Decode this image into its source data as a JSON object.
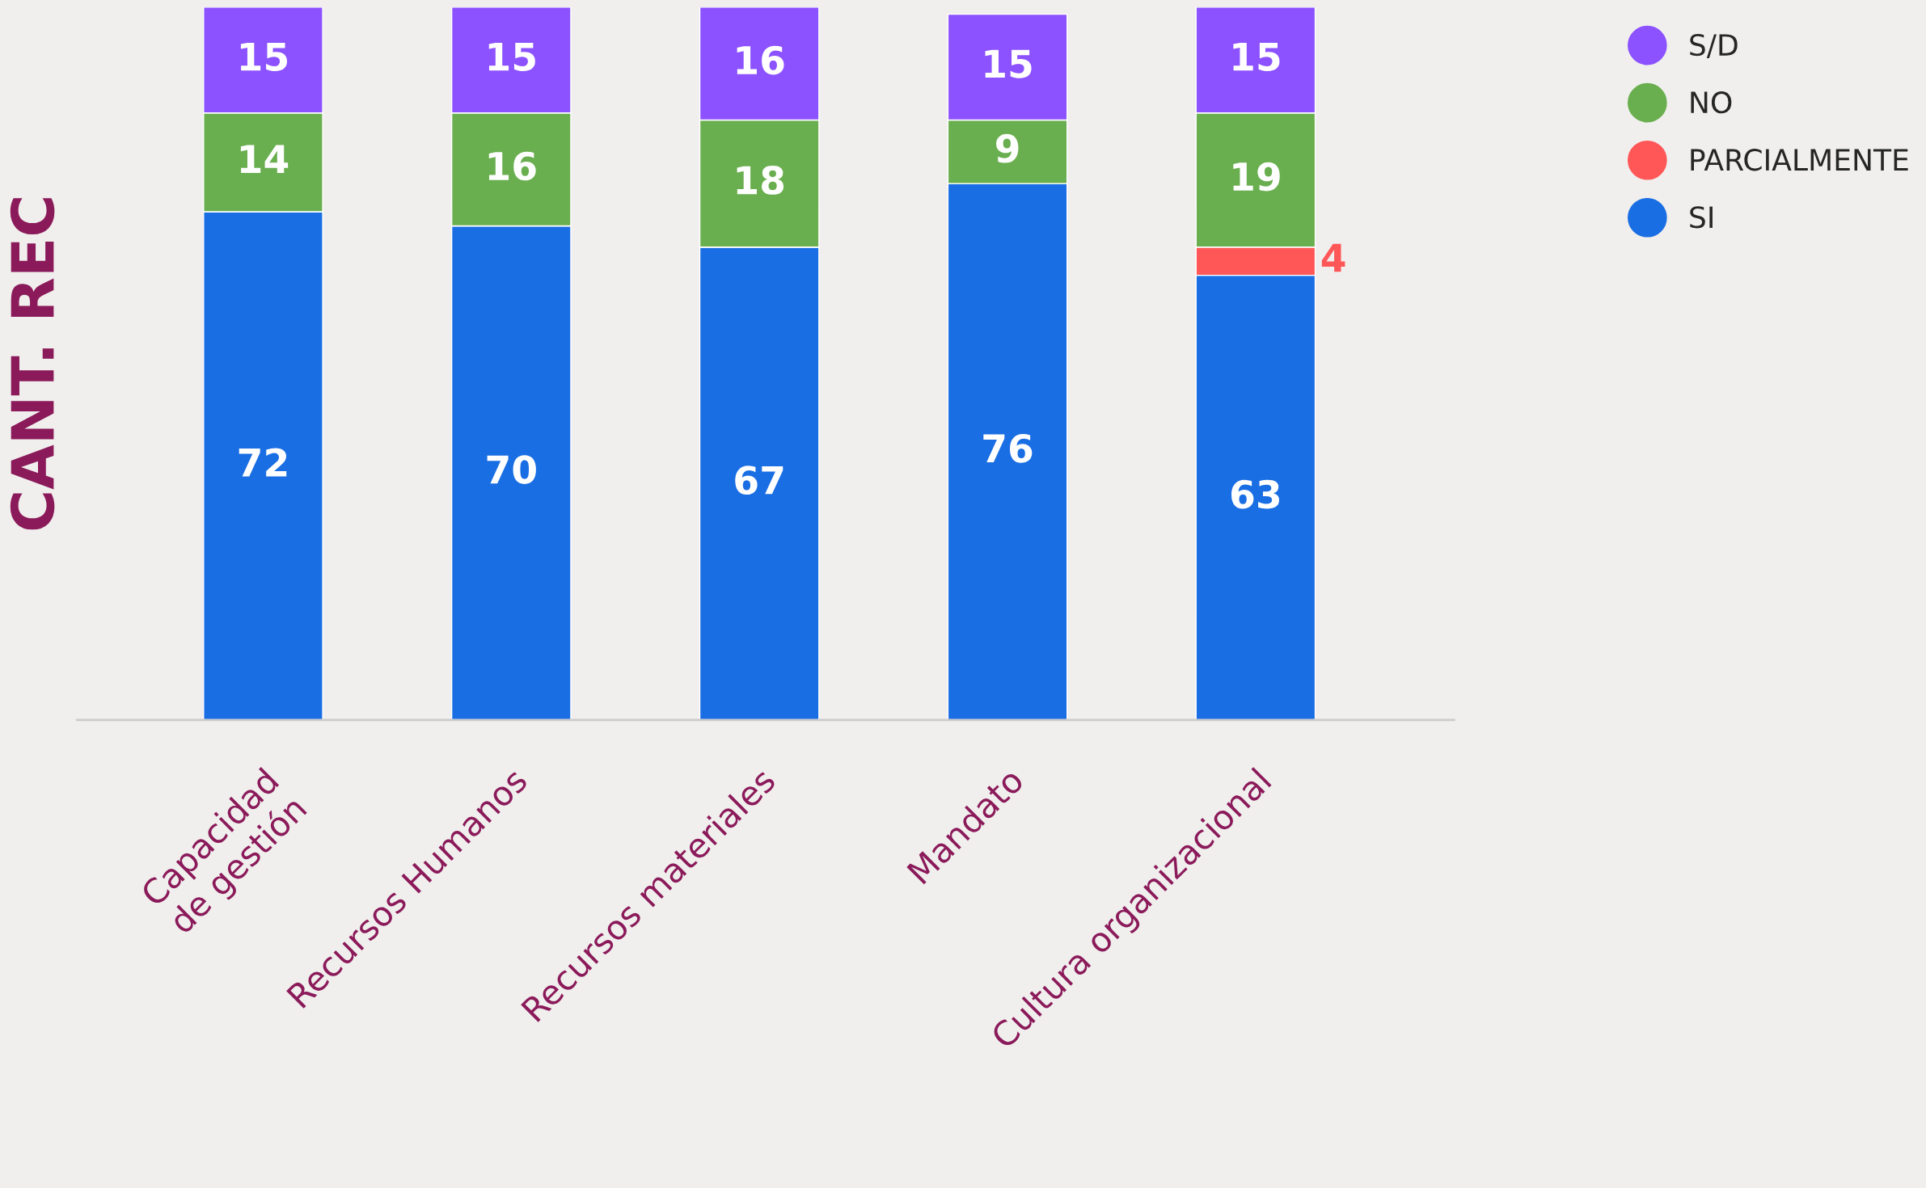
{
  "chart_data": {
    "type": "bar",
    "stacked": true,
    "ylabel": "CANT. REC",
    "categories": [
      "Capacidad\nde gestión",
      "Recursos Humanos",
      "Recursos materiales",
      "Mandato",
      "Cultura organizacional"
    ],
    "series": [
      {
        "name": "SI",
        "color": "#1a6ee3",
        "values": [
          72,
          70,
          67,
          76,
          63
        ]
      },
      {
        "name": "PARCIALMENTE",
        "color": "#ff5757",
        "values": [
          null,
          null,
          null,
          null,
          4
        ]
      },
      {
        "name": "NO",
        "color": "#6aaf4f",
        "values": [
          14,
          16,
          18,
          9,
          19
        ]
      },
      {
        "name": "S/D",
        "color": "#8c52ff",
        "values": [
          15,
          15,
          16,
          15,
          15
        ]
      }
    ],
    "data_labels": true,
    "legend": "top right",
    "grid": false
  }
}
